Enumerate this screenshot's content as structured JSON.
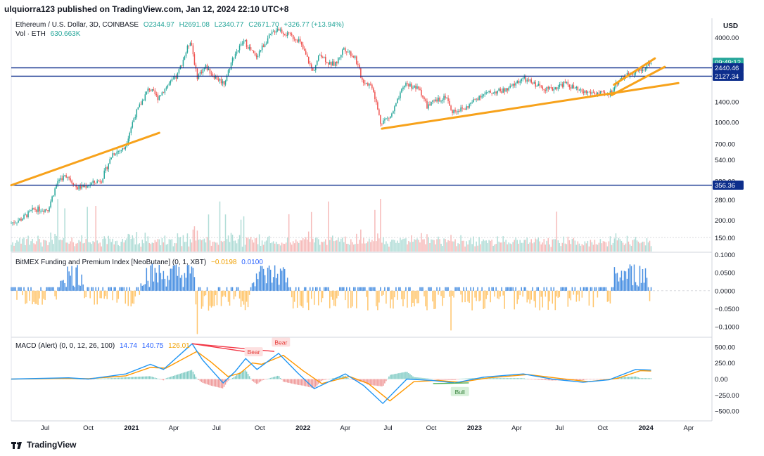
{
  "header": {
    "text": "ulquiorra123 published on TradingView.com, Jan 12, 2024 22:10 UTC+8"
  },
  "legend_main": {
    "symbol": "Ethereum / U.S. Dollar, 3D, COINBASE",
    "o": "O2344.97",
    "h": "H2691.08",
    "l": "L2340.77",
    "c": "C2671.70",
    "chg": "+326.77 (+13.94%)"
  },
  "legend_vol": {
    "label": "Vol · ETH",
    "value": "630.663K"
  },
  "legend_bitmex": {
    "label": "BitMEX Funding and Premium Index [NeoButane] (0, 1, XBT)",
    "v1": "−0.0198",
    "v2": "0.0100"
  },
  "legend_macd": {
    "label": "MACD (Alert) (0, 0, 12, 26, 100)",
    "v1": "14.74",
    "v2": "140.75",
    "v3": "126.01"
  },
  "footer": {
    "brand": "TradingView"
  },
  "colors": {
    "up": "#26a69a",
    "down": "#ef5350",
    "hline": "#0d2e8c",
    "trend": "#f7a21b",
    "macd": "#2196f3",
    "signal": "#ff9800",
    "fund_pos": "#4a90e2",
    "fund_neg": "#ffc56b"
  },
  "chart_data": [
    {
      "type": "candlestick",
      "title": "Ethereum / U.S. Dollar, 3D, COINBASE",
      "yscale": "log",
      "ylim": [
        120,
        5500
      ],
      "ylabel": "USD",
      "yticks": [
        4000,
        2400,
        1400,
        1000,
        700,
        540,
        380,
        280,
        200,
        150
      ],
      "ytick_labels": [
        "4000.00",
        "2400.00",
        "1400.00",
        "1000.00",
        "700.00",
        "540.00",
        "380.00",
        "280.00",
        "200.00",
        "150.00"
      ],
      "xlim": [
        "2020-04-20",
        "2024-05-10"
      ],
      "xticks": [
        "2020-07-01",
        "2020-10-01",
        "2021-01-01",
        "2021-04-01",
        "2021-07-01",
        "2021-10-01",
        "2022-01-01",
        "2022-04-01",
        "2022-07-01",
        "2022-10-01",
        "2023-01-01",
        "2023-04-01",
        "2023-07-01",
        "2023-10-01",
        "2024-01-01",
        "2024-04-01"
      ],
      "xtick_labels": [
        "Jul",
        "Oct",
        "2021",
        "Apr",
        "Jul",
        "Oct",
        "2022",
        "Apr",
        "Jul",
        "Oct",
        "2023",
        "Apr",
        "Jul",
        "Oct",
        "2024",
        "Apr"
      ],
      "price_path": [
        [
          "2020-04-20",
          190
        ],
        [
          "2020-05-15",
          205
        ],
        [
          "2020-06-10",
          240
        ],
        [
          "2020-07-10",
          240
        ],
        [
          "2020-08-01",
          390
        ],
        [
          "2020-08-20",
          420
        ],
        [
          "2020-09-10",
          340
        ],
        [
          "2020-10-01",
          355
        ],
        [
          "2020-11-01",
          390
        ],
        [
          "2020-11-25",
          600
        ],
        [
          "2020-12-20",
          650
        ],
        [
          "2021-01-10",
          1100
        ],
        [
          "2021-02-10",
          1750
        ],
        [
          "2021-03-01",
          1500
        ],
        [
          "2021-03-20",
          1800
        ],
        [
          "2021-04-10",
          2100
        ],
        [
          "2021-05-10",
          3900
        ],
        [
          "2021-05-23",
          2100
        ],
        [
          "2021-06-10",
          2500
        ],
        [
          "2021-07-01",
          2100
        ],
        [
          "2021-07-20",
          1900
        ],
        [
          "2021-08-10",
          3000
        ],
        [
          "2021-09-01",
          3800
        ],
        [
          "2021-09-25",
          2900
        ],
        [
          "2021-10-20",
          3900
        ],
        [
          "2021-11-10",
          4700
        ],
        [
          "2021-12-01",
          4200
        ],
        [
          "2021-12-25",
          3900
        ],
        [
          "2022-01-10",
          3000
        ],
        [
          "2022-01-25",
          2300
        ],
        [
          "2022-02-10",
          3100
        ],
        [
          "2022-03-01",
          2600
        ],
        [
          "2022-03-15",
          2600
        ],
        [
          "2022-04-01",
          3400
        ],
        [
          "2022-04-25",
          2900
        ],
        [
          "2022-05-10",
          2000
        ],
        [
          "2022-06-01",
          1800
        ],
        [
          "2022-06-18",
          1000
        ],
        [
          "2022-07-10",
          1100
        ],
        [
          "2022-08-10",
          1900
        ],
        [
          "2022-09-10",
          1700
        ],
        [
          "2022-09-25",
          1300
        ],
        [
          "2022-11-05",
          1550
        ],
        [
          "2022-11-15",
          1200
        ],
        [
          "2022-12-15",
          1250
        ],
        [
          "2023-01-15",
          1550
        ],
        [
          "2023-02-15",
          1650
        ],
        [
          "2023-03-15",
          1700
        ],
        [
          "2023-04-15",
          2050
        ],
        [
          "2023-05-15",
          1850
        ],
        [
          "2023-06-15",
          1700
        ],
        [
          "2023-07-15",
          1900
        ],
        [
          "2023-08-17",
          1650
        ],
        [
          "2023-09-15",
          1620
        ],
        [
          "2023-10-15",
          1560
        ],
        [
          "2023-11-10",
          2050
        ],
        [
          "2023-12-10",
          2300
        ],
        [
          "2023-12-28",
          2350
        ],
        [
          "2024-01-12",
          2671.7
        ]
      ],
      "horizontal_lines": [
        2440.46,
        2127.34,
        356.36
      ],
      "price_labels": [
        {
          "value": 2671.7,
          "text": "09:49:12",
          "color": "#26a69a"
        },
        {
          "value": 2440.46,
          "text": "2440.46",
          "color": "#0d2e8c"
        },
        {
          "value": 2127.34,
          "text": "2127.34",
          "color": "#0d2e8c"
        },
        {
          "value": 356.36,
          "text": "356.36",
          "color": "#0d2e8c"
        }
      ],
      "trend_lines": [
        [
          [
            "2020-04-20",
            356
          ],
          [
            "2021-03-01",
            840
          ]
        ],
        [
          [
            "2022-06-18",
            900
          ],
          [
            "2024-03-10",
            1900
          ]
        ],
        [
          [
            "2023-10-20",
            1560
          ],
          [
            "2024-02-10",
            2480
          ]
        ],
        [
          [
            "2023-10-25",
            1850
          ],
          [
            "2024-01-20",
            2850
          ]
        ]
      ]
    },
    {
      "type": "bar",
      "title": "BitMEX Funding and Premium Index [NeoButane] (0, 1, XBT)",
      "ylim": [
        -0.125,
        0.105
      ],
      "yticks": [
        0.1,
        0.05,
        0,
        -0.05,
        -0.1
      ],
      "ytick_labels": [
        "0.1000",
        "0.0500",
        "0.0000",
        "−0.0500",
        "−0.1000"
      ]
    },
    {
      "type": "line",
      "title": "MACD (Alert) (0, 0, 12, 26, 100)",
      "ylim": [
        -640,
        640
      ],
      "yticks": [
        500,
        250,
        0,
        -250,
        -500
      ],
      "ytick_labels": [
        "500.00",
        "250.00",
        "0.00",
        "−250.00",
        "−500.00"
      ],
      "macd_path": [
        [
          "2020-04-20",
          0
        ],
        [
          "2020-08-20",
          20
        ],
        [
          "2020-10-01",
          0
        ],
        [
          "2020-12-20",
          80
        ],
        [
          "2021-02-10",
          230
        ],
        [
          "2021-03-10",
          150
        ],
        [
          "2021-05-10",
          550
        ],
        [
          "2021-06-01",
          300
        ],
        [
          "2021-07-15",
          -60
        ],
        [
          "2021-08-10",
          120
        ],
        [
          "2021-09-01",
          320
        ],
        [
          "2021-09-25",
          150
        ],
        [
          "2021-11-10",
          400
        ],
        [
          "2021-12-20",
          100
        ],
        [
          "2022-01-25",
          -150
        ],
        [
          "2022-04-01",
          80
        ],
        [
          "2022-05-10",
          -100
        ],
        [
          "2022-06-20",
          -380
        ],
        [
          "2022-08-10",
          0
        ],
        [
          "2022-10-01",
          -20
        ],
        [
          "2022-11-20",
          -60
        ],
        [
          "2023-01-20",
          30
        ],
        [
          "2023-04-15",
          80
        ],
        [
          "2023-06-15",
          0
        ],
        [
          "2023-08-20",
          -50
        ],
        [
          "2023-10-15",
          -10
        ],
        [
          "2023-12-10",
          150
        ],
        [
          "2024-01-12",
          140
        ]
      ],
      "signal_path": [
        [
          "2020-04-20",
          0
        ],
        [
          "2020-08-20",
          10
        ],
        [
          "2020-10-01",
          5
        ],
        [
          "2020-12-20",
          50
        ],
        [
          "2021-02-10",
          180
        ],
        [
          "2021-03-15",
          170
        ],
        [
          "2021-05-20",
          430
        ],
        [
          "2021-06-20",
          260
        ],
        [
          "2021-07-25",
          40
        ],
        [
          "2021-08-20",
          90
        ],
        [
          "2021-09-15",
          250
        ],
        [
          "2021-10-05",
          230
        ],
        [
          "2021-11-20",
          370
        ],
        [
          "2022-01-01",
          130
        ],
        [
          "2022-02-10",
          -70
        ],
        [
          "2022-04-10",
          40
        ],
        [
          "2022-05-20",
          -70
        ],
        [
          "2022-07-05",
          -340
        ],
        [
          "2022-08-25",
          -40
        ],
        [
          "2022-10-15",
          -20
        ],
        [
          "2022-12-01",
          -50
        ],
        [
          "2023-02-01",
          20
        ],
        [
          "2023-04-25",
          70
        ],
        [
          "2023-07-01",
          10
        ],
        [
          "2023-09-01",
          -40
        ],
        [
          "2023-11-01",
          10
        ],
        [
          "2023-12-20",
          130
        ],
        [
          "2024-01-12",
          126
        ]
      ],
      "divergence_lines": [
        [
          [
            "2021-05-10",
            550
          ],
          [
            "2021-09-25",
            400
          ]
        ],
        [
          [
            "2021-05-10",
            550
          ],
          [
            "2021-11-01",
            430
          ]
        ]
      ],
      "annotations": [
        {
          "text": "Bear",
          "at": [
            "2021-09-18",
            420
          ]
        },
        {
          "text": "Bear",
          "at": [
            "2021-11-15",
            570
          ]
        },
        {
          "text": "Bull",
          "at": [
            "2022-12-01",
            -200
          ]
        }
      ]
    }
  ]
}
